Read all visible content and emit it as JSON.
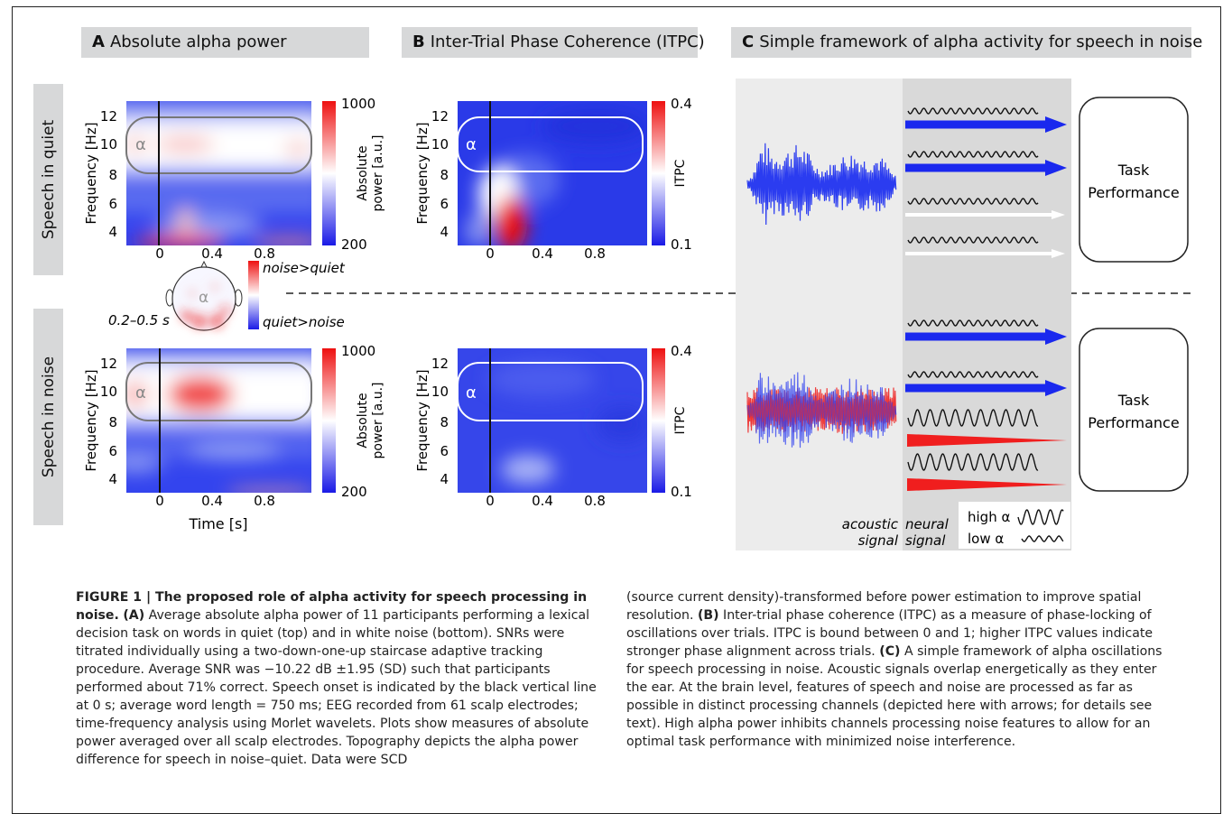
{
  "panels": {
    "A": {
      "letter": "A",
      "title": "Absolute alpha power"
    },
    "B": {
      "letter": "B",
      "title": "Inter-Trial Phase Coherence (ITPC)"
    },
    "C": {
      "letter": "C",
      "title": "Simple framework of alpha activity for speech in noise"
    }
  },
  "rows": {
    "quiet": "Speech in quiet",
    "noise": "Speech in noise"
  },
  "axes": {
    "freq_label": "Frequency [Hz]",
    "time_label": "Time [s]",
    "freq_ticks": [
      "4",
      "6",
      "8",
      "10",
      "12"
    ],
    "time_ticks": [
      "0",
      "0.4",
      "0.8"
    ],
    "alpha": "α"
  },
  "colorbars": {
    "power": {
      "label": "Absolute power [a.u.]",
      "max": "1000",
      "min": "200"
    },
    "itpc": {
      "label": "ITPC",
      "max": "0.4",
      "min": "0.1"
    }
  },
  "topography": {
    "window": "0.2–0.5 s",
    "pos": "noise>quiet",
    "neg": "quiet>noise",
    "alpha": "α"
  },
  "framework": {
    "task": "Task Performance",
    "acoustic": "acoustic signal",
    "neural": "neural signal",
    "high_alpha": "high α",
    "low_alpha": "low α"
  },
  "colors": {
    "signal": "#2b3cf0",
    "noise": "#ee2a2a",
    "speech_arrow": "#1a28ee",
    "noise_arrow": "#f01e1e"
  },
  "caption": {
    "figure_label": "FIGURE 1 | The proposed role of alpha activity for speech processing in noise.",
    "left": [
      {
        "tag": "(A)",
        "text": "Average absolute alpha power of 11 participants performing a lexical decision task on words in quiet (top) and in white noise (bottom). SNRs were titrated individually using a two-down-one-up staircase adaptive tracking procedure. Average SNR was −10.22 dB ±1.95 (SD) such that participants performed about 71% correct. Speech onset is indicated by the black vertical line at 0 s; average word length = 750 ms; EEG recorded from 61 scalp electrodes; time-frequency analysis using Morlet wavelets. Plots show measures of absolute power averaged over all scalp electrodes. Topography depicts the alpha power difference for speech in noise–quiet. Data were SCD"
      }
    ],
    "right_intro": "(source current density)-transformed before power estimation to improve spatial resolution.",
    "right_B_tag": "(B)",
    "right_B": "Inter-trial phase coherence (ITPC) as a measure of phase-locking of oscillations over trials. ITPC is bound between 0 and 1; higher ITPC values indicate stronger phase alignment across trials.",
    "right_C_tag": "(C)",
    "right_C": "A simple framework of alpha oscillations for speech processing in noise. Acoustic signals overlap energetically as they enter the ear. At the brain level, features of speech and noise are processed as far as possible in distinct processing channels (depicted here with arrows; for details see text). High alpha power inhibits channels processing noise features to allow for an optimal task performance with minimized noise interference."
  }
}
